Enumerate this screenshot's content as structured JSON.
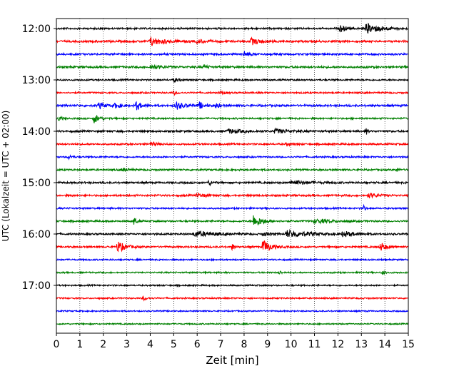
{
  "chart_data": {
    "type": "line",
    "title": "",
    "xlabel": "Zeit  [min]",
    "ylabel": "UTC (Lokalzeit = UTC + 02:00)",
    "xlim": [
      0,
      15
    ],
    "x_ticks": [
      0,
      1,
      2,
      3,
      4,
      5,
      6,
      7,
      8,
      9,
      10,
      11,
      12,
      13,
      14,
      15
    ],
    "y_ticks": [
      "12:00",
      "13:00",
      "14:00",
      "15:00",
      "16:00",
      "17:00"
    ],
    "row_minutes": 15,
    "grid": "vertical dotted",
    "colors": [
      "#000000",
      "#ff0000",
      "#0000ff",
      "#008000"
    ],
    "series": [
      {
        "start": "12:00",
        "color": "#000000",
        "noise": 0.12,
        "events": [
          {
            "t": 12.1,
            "amp": 0.55,
            "dur": 0.35
          },
          {
            "t": 13.2,
            "amp": 0.8,
            "dur": 0.9
          }
        ]
      },
      {
        "start": "12:15",
        "color": "#ff0000",
        "noise": 0.14,
        "events": [
          {
            "t": 4.0,
            "amp": 0.6,
            "dur": 0.9
          },
          {
            "t": 8.3,
            "amp": 0.5,
            "dur": 0.6
          },
          {
            "t": 6.0,
            "amp": 0.3,
            "dur": 0.5
          }
        ]
      },
      {
        "start": "12:30",
        "color": "#0000ff",
        "noise": 0.13,
        "events": [
          {
            "t": 8.0,
            "amp": 0.35,
            "dur": 0.4
          }
        ]
      },
      {
        "start": "12:45",
        "color": "#008000",
        "noise": 0.14,
        "events": [
          {
            "t": 4.0,
            "amp": 0.3,
            "dur": 0.8
          },
          {
            "t": 6.3,
            "amp": 0.35,
            "dur": 0.2
          }
        ]
      },
      {
        "start": "13:00",
        "color": "#000000",
        "noise": 0.11,
        "events": [
          {
            "t": 5.0,
            "amp": 0.3,
            "dur": 0.3
          }
        ]
      },
      {
        "start": "13:15",
        "color": "#ff0000",
        "noise": 0.11,
        "events": [
          {
            "t": 5.0,
            "amp": 0.3,
            "dur": 0.2
          },
          {
            "t": 7.0,
            "amp": 0.25,
            "dur": 0.3
          }
        ]
      },
      {
        "start": "13:30",
        "color": "#0000ff",
        "noise": 0.14,
        "events": [
          {
            "t": 1.8,
            "amp": 0.4,
            "dur": 0.5
          },
          {
            "t": 3.4,
            "amp": 0.7,
            "dur": 0.3
          },
          {
            "t": 5.1,
            "amp": 0.6,
            "dur": 0.5
          },
          {
            "t": 6.1,
            "amp": 0.5,
            "dur": 0.3
          },
          {
            "t": 6.8,
            "amp": 0.45,
            "dur": 0.2
          },
          {
            "t": 2.5,
            "amp": 0.35,
            "dur": 0.4
          }
        ]
      },
      {
        "start": "13:45",
        "color": "#008000",
        "noise": 0.11,
        "events": [
          {
            "t": 0.1,
            "amp": 0.4,
            "dur": 0.2
          },
          {
            "t": 1.6,
            "amp": 0.75,
            "dur": 0.35
          }
        ]
      },
      {
        "start": "14:00",
        "color": "#000000",
        "noise": 0.13,
        "events": [
          {
            "t": 7.3,
            "amp": 0.3,
            "dur": 1.1
          },
          {
            "t": 9.3,
            "amp": 0.3,
            "dur": 1.0
          },
          {
            "t": 13.2,
            "amp": 0.5,
            "dur": 0.1
          }
        ]
      },
      {
        "start": "14:15",
        "color": "#ff0000",
        "noise": 0.12,
        "events": [
          {
            "t": 4.0,
            "amp": 0.3,
            "dur": 0.5
          },
          {
            "t": 9.8,
            "amp": 0.25,
            "dur": 0.3
          }
        ]
      },
      {
        "start": "14:30",
        "color": "#0000ff",
        "noise": 0.11,
        "events": [
          {
            "t": 0.5,
            "amp": 0.35,
            "dur": 0.2
          }
        ]
      },
      {
        "start": "14:45",
        "color": "#008000",
        "noise": 0.12,
        "events": [
          {
            "t": 2.8,
            "amp": 0.3,
            "dur": 0.3
          },
          {
            "t": 14.5,
            "amp": 0.35,
            "dur": 0.15
          }
        ]
      },
      {
        "start": "15:00",
        "color": "#000000",
        "noise": 0.13,
        "events": [
          {
            "t": 6.5,
            "amp": 0.4,
            "dur": 0.2
          },
          {
            "t": 10.0,
            "amp": 0.35,
            "dur": 1.0
          }
        ]
      },
      {
        "start": "15:15",
        "color": "#ff0000",
        "noise": 0.13,
        "events": [
          {
            "t": 6.0,
            "amp": 0.3,
            "dur": 0.5
          },
          {
            "t": 13.3,
            "amp": 0.35,
            "dur": 0.6
          }
        ]
      },
      {
        "start": "15:30",
        "color": "#0000ff",
        "noise": 0.11,
        "events": [
          {
            "t": 13.1,
            "amp": 0.5,
            "dur": 0.1
          }
        ]
      },
      {
        "start": "15:45",
        "color": "#008000",
        "noise": 0.12,
        "events": [
          {
            "t": 3.3,
            "amp": 0.7,
            "dur": 0.15
          },
          {
            "t": 8.4,
            "amp": 0.95,
            "dur": 0.6
          },
          {
            "t": 11.0,
            "amp": 0.3,
            "dur": 1.2
          }
        ]
      },
      {
        "start": "16:00",
        "color": "#000000",
        "noise": 0.12,
        "events": [
          {
            "t": 5.9,
            "amp": 0.45,
            "dur": 1.1
          },
          {
            "t": 9.8,
            "amp": 0.55,
            "dur": 1.6
          },
          {
            "t": 12.2,
            "amp": 0.4,
            "dur": 0.8
          },
          {
            "t": 8.8,
            "amp": 0.3,
            "dur": 0.4
          }
        ]
      },
      {
        "start": "16:15",
        "color": "#ff0000",
        "noise": 0.12,
        "events": [
          {
            "t": 2.6,
            "amp": 0.9,
            "dur": 0.5
          },
          {
            "t": 7.5,
            "amp": 0.6,
            "dur": 0.1
          },
          {
            "t": 8.8,
            "amp": 1.1,
            "dur": 0.5
          },
          {
            "t": 13.8,
            "amp": 0.7,
            "dur": 0.4
          }
        ]
      },
      {
        "start": "16:30",
        "color": "#0000ff",
        "noise": 0.1,
        "events": []
      },
      {
        "start": "16:45",
        "color": "#008000",
        "noise": 0.1,
        "events": [
          {
            "t": 9.5,
            "amp": 0.3,
            "dur": 0.15
          },
          {
            "t": 13.9,
            "amp": 0.25,
            "dur": 0.2
          }
        ]
      },
      {
        "start": "17:00",
        "color": "#000000",
        "noise": 0.1,
        "events": []
      },
      {
        "start": "17:15",
        "color": "#ff0000",
        "noise": 0.1,
        "events": [
          {
            "t": 3.7,
            "amp": 0.3,
            "dur": 0.3
          }
        ]
      },
      {
        "start": "17:30",
        "color": "#0000ff",
        "noise": 0.09,
        "events": []
      },
      {
        "start": "17:45",
        "color": "#008000",
        "noise": 0.09,
        "events": []
      }
    ]
  }
}
